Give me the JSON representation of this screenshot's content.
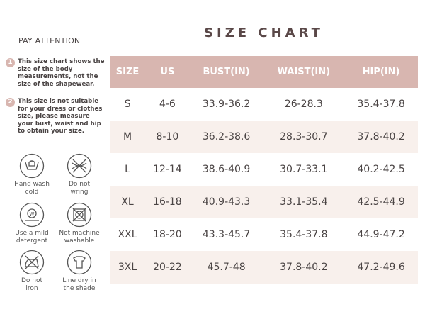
{
  "sidebar": {
    "heading": "PAY ATTENTION",
    "notes": [
      {
        "num": "1",
        "text": "This size chart shows the size of the body measurements, not the size of the shapewear."
      },
      {
        "num": "2",
        "text": "This size is not suitable for your dress or clothes size, please measure your bust, waist and hip to obtain your size."
      }
    ],
    "care": [
      {
        "icon": "hand-wash-icon",
        "l1": "Hand wash",
        "l2": "cold"
      },
      {
        "icon": "no-wring-icon",
        "l1": "Do not",
        "l2": "wring"
      },
      {
        "icon": "mild-detergent-icon",
        "l1": "Use a mild",
        "l2": "detergent"
      },
      {
        "icon": "no-machine-wash-icon",
        "l1": "Not machine",
        "l2": "washable"
      },
      {
        "icon": "no-iron-icon",
        "l1": "Do not",
        "l2": "iron"
      },
      {
        "icon": "line-dry-shade-icon",
        "l1": "Line dry in",
        "l2": "the shade"
      }
    ]
  },
  "main": {
    "title": "SIZE CHART",
    "headers": [
      "SIZE",
      "US",
      "BUST(IN)",
      "WAIST(IN)",
      "HIP(IN)"
    ],
    "rows": [
      [
        "S",
        "4-6",
        "33.9-36.2",
        "26-28.3",
        "35.4-37.8"
      ],
      [
        "M",
        "8-10",
        "36.2-38.6",
        "28.3-30.7",
        "37.8-40.2"
      ],
      [
        "L",
        "12-14",
        "38.6-40.9",
        "30.7-33.1",
        "40.2-42.5"
      ],
      [
        "XL",
        "16-18",
        "40.9-43.3",
        "33.1-35.4",
        "42.5-44.9"
      ],
      [
        "XXL",
        "18-20",
        "43.3-45.7",
        "35.4-37.8",
        "44.9-47.2"
      ],
      [
        "3XL",
        "20-22",
        "45.7-48",
        "37.8-40.2",
        "47.2-49.6"
      ]
    ]
  },
  "colors": {
    "header": "#d8b6b0",
    "alt_row": "#f8f0ec",
    "text": "#4a4444"
  }
}
